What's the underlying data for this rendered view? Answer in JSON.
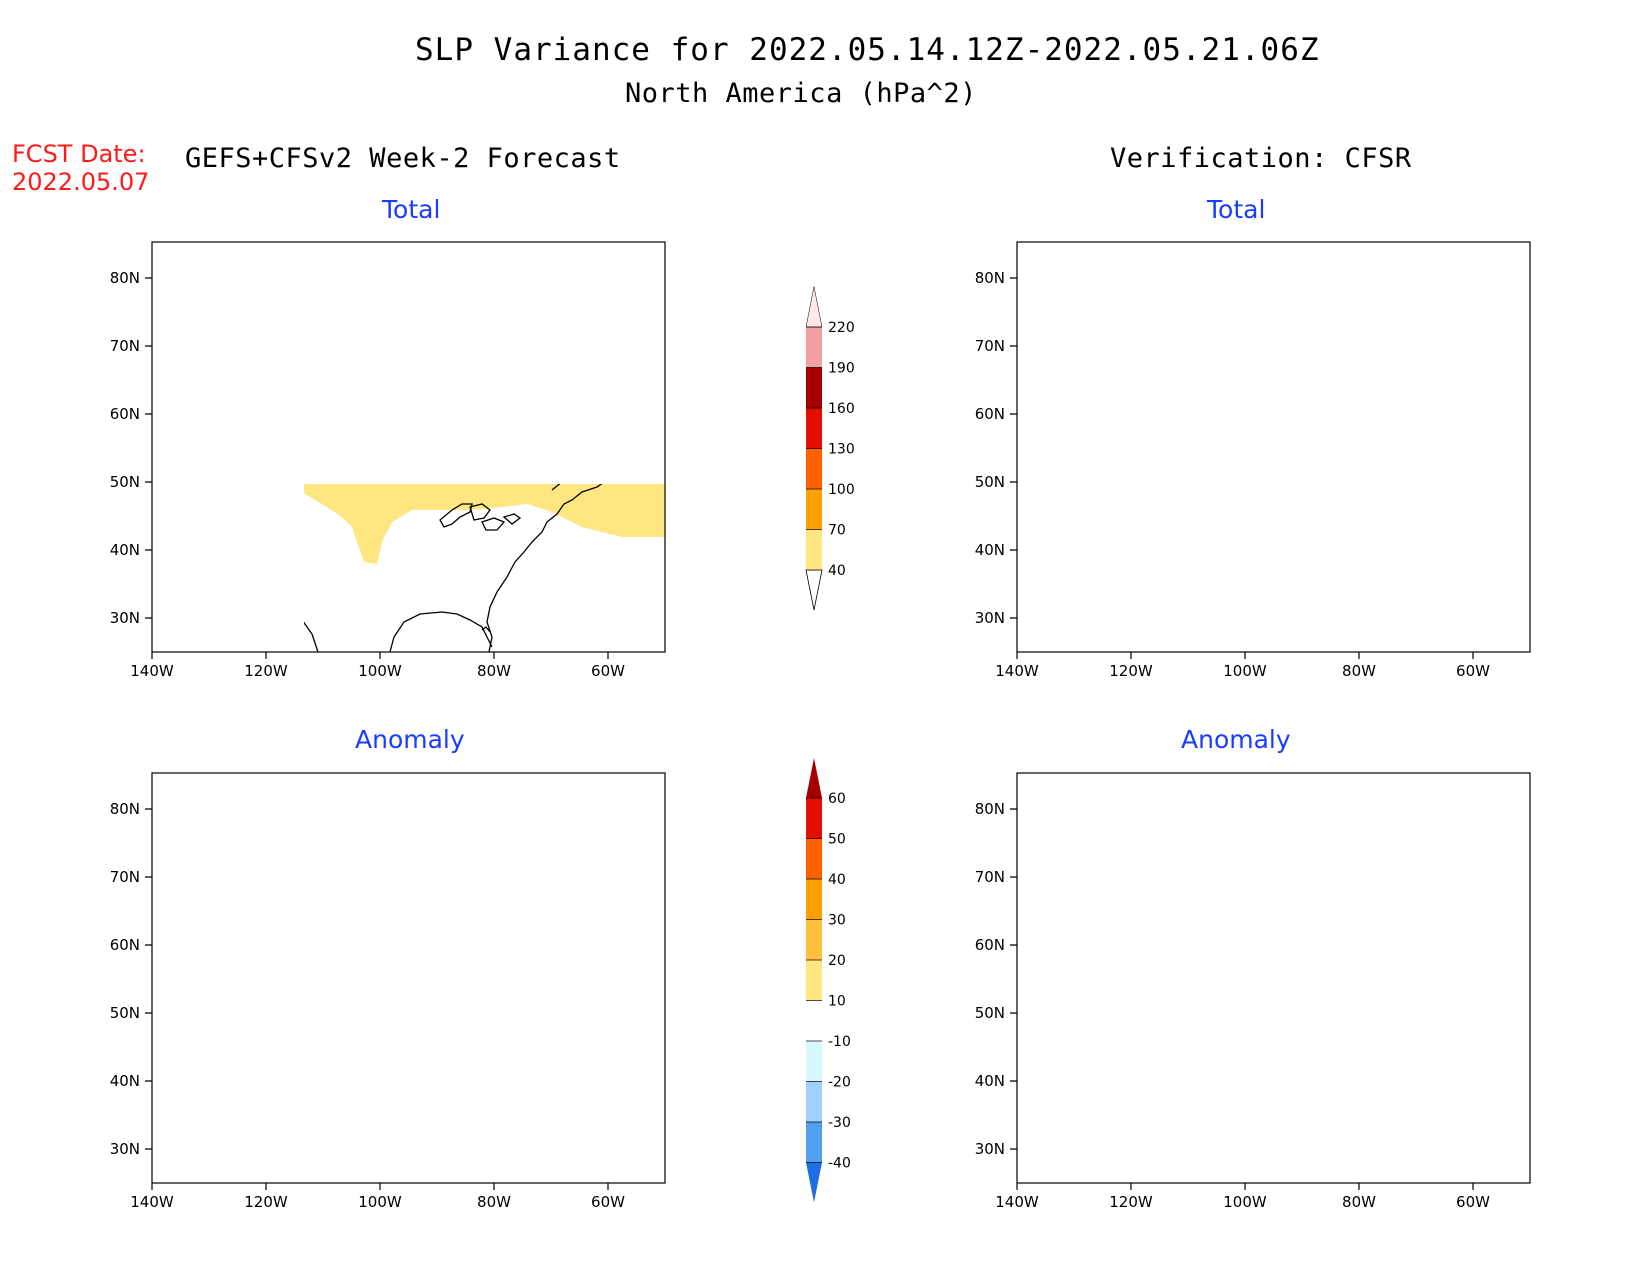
{
  "header": {
    "title": "SLP Variance for 2022.05.14.12Z-2022.05.21.06Z",
    "subtitle": "North America (hPa^2)"
  },
  "fcst": {
    "label": "FCST Date:",
    "date": "2022.05.07"
  },
  "left_heading": "GEFS+CFSv2 Week-2 Forecast",
  "right_heading": "Verification: CFSR",
  "panel_titles": {
    "total": "Total",
    "anomaly": "Anomaly"
  },
  "axes": {
    "lat_ticks": [
      "80N",
      "70N",
      "60N",
      "50N",
      "40N",
      "30N"
    ],
    "lon_ticks": [
      "140W",
      "120W",
      "100W",
      "80W",
      "60W"
    ]
  },
  "colorbar_total": {
    "levels": [
      "40",
      "70",
      "100",
      "130",
      "160",
      "190",
      "220"
    ],
    "colors": [
      "#ffe680",
      "#ff9f00",
      "#ff6000",
      "#e01000",
      "#a50000",
      "#f0a0a0",
      "#ffe8e8"
    ]
  },
  "colorbar_anomaly": {
    "levels": [
      "60",
      "50",
      "40",
      "30",
      "20",
      "10",
      "-10",
      "-20",
      "-30",
      "-40"
    ],
    "colors": [
      "#a50000",
      "#e01000",
      "#ff6000",
      "#ff9f00",
      "#ffc040",
      "#ffe680",
      "#ffffff",
      "#d8f8ff",
      "#a0d0ff",
      "#50a0f0",
      "#1e6ee6"
    ]
  }
}
